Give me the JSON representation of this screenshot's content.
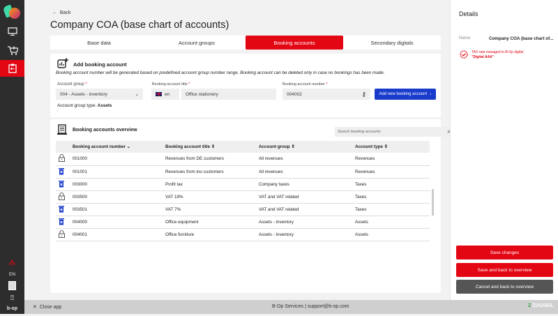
{
  "sidebar": {
    "language": "EN",
    "brand": "b-op"
  },
  "header": {
    "back_label": "Back",
    "title": "Company COA (base chart of accounts)"
  },
  "tabs": [
    {
      "label": "Base data"
    },
    {
      "label": "Account groups"
    },
    {
      "label": "Booking accounts",
      "active": true
    },
    {
      "label": "Secondary digitals"
    }
  ],
  "add": {
    "title": "Add booking account",
    "note": "Booking account number will be generated based on predefined account group number range. Booking account can be deleted only in case no bookings has been made.",
    "group_label": "Account group",
    "group_value": "004 - Assets - inventory",
    "title_label": "Booking account title",
    "lang": "en",
    "title_value": "Office stationery",
    "number_label": "Booking account number",
    "number_value": "004002",
    "add_button": "Add new booking account",
    "type_prefix": "Account group type:",
    "type_value": "Assets",
    "required": "*"
  },
  "overview": {
    "title": "Booking accounts overview",
    "search_placeholder": "Search booking accounts",
    "columns": [
      "Booking account number",
      "Booking account title",
      "Account group",
      "Account type"
    ],
    "rows": [
      {
        "icon": "lock",
        "number": "001000",
        "title": "Revenues from DE customers",
        "group": "All revenues",
        "type": "Revenues"
      },
      {
        "icon": "trash",
        "number": "001001",
        "title": "Revenues from ino customers",
        "group": "All revenues",
        "type": "Revenues"
      },
      {
        "icon": "trash",
        "number": "003000",
        "title": "Profit tax",
        "group": "Company taxes",
        "type": "Taxes"
      },
      {
        "icon": "lock",
        "number": "003500",
        "title": "VAT 19%",
        "group": "VAT and VAT related",
        "type": "Taxes"
      },
      {
        "icon": "trash",
        "number": "003501",
        "title": "VAT 7%",
        "group": "VAT and VAT related",
        "type": "Taxes"
      },
      {
        "icon": "trash",
        "number": "004000",
        "title": "Office equipment",
        "group": "Assets - inventory",
        "type": "Assets"
      },
      {
        "icon": "lock",
        "number": "004001",
        "title": "Office furniture",
        "group": "Assets - inventory",
        "type": "Assets"
      }
    ]
  },
  "details": {
    "title": "Details",
    "name_label": "Name:",
    "name_value": "Company COA (base chart of...",
    "tax_line1": "TAX rate managed in B-Op digital",
    "tax_line2": "\"Digital AAA\"",
    "save": "Save changes",
    "save_back": "Save and back to overview",
    "cancel": "Cancel and back to overview"
  },
  "footer": {
    "close": "Close app",
    "center": "B-Op Services | support@b-op.com",
    "logo": "ZUGSEIL"
  },
  "colors": {
    "accent": "#e30613",
    "primary": "#1a3ccc",
    "sidebar": "#2d2d2d",
    "cancel": "#555555"
  }
}
